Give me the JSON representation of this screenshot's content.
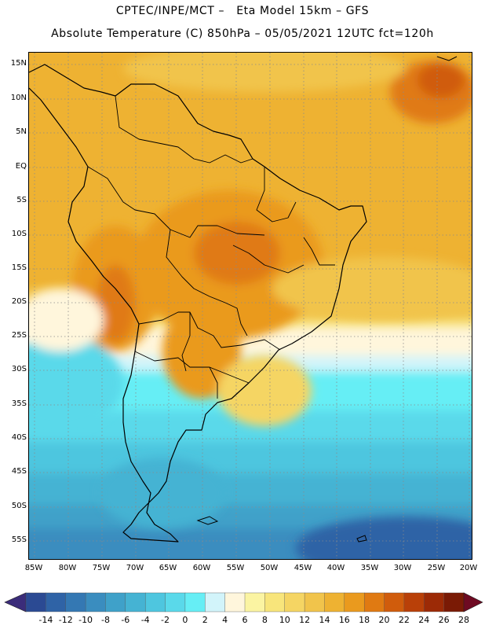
{
  "header": {
    "line1": "CPTEC/INPE/MCT –   Eta Model 15km – GFS",
    "line2": "Absolute Temperature (C) 850hPa – 05/05/2021 12UTC fct=120h"
  },
  "map": {
    "region": "South America",
    "variable": "Absolute Temperature",
    "units": "C",
    "level": "850hPa",
    "lat_labels": [
      "15N",
      "10N",
      "5N",
      "EQ",
      "5S",
      "10S",
      "15S",
      "20S",
      "25S",
      "30S",
      "35S",
      "40S",
      "45S",
      "50S",
      "55S"
    ],
    "lon_labels": [
      "85W",
      "80W",
      "75W",
      "70W",
      "65W",
      "60W",
      "55W",
      "50W",
      "45W",
      "40W",
      "35W",
      "30W",
      "25W",
      "20W"
    ]
  },
  "colorbar": {
    "labels": [
      "-14",
      "-12",
      "-10",
      "-8",
      "-6",
      "-4",
      "-2",
      "0",
      "2",
      "4",
      "6",
      "8",
      "10",
      "12",
      "14",
      "16",
      "18",
      "20",
      "22",
      "24",
      "26",
      "28"
    ],
    "colors": [
      "#2b4a93",
      "#2f63a6",
      "#3478b3",
      "#3a8dbf",
      "#3fa1c9",
      "#45b3d3",
      "#4ec6df",
      "#5ad9ea",
      "#66eef5",
      "#d2f4fa",
      "#fff6dc",
      "#fbf4a2",
      "#f8e57b",
      "#f5d563",
      "#f1c44b",
      "#eeb232",
      "#ea9a1e",
      "#e07a12",
      "#d05c0c",
      "#b94008",
      "#9c2a06",
      "#7a1a05"
    ]
  }
}
